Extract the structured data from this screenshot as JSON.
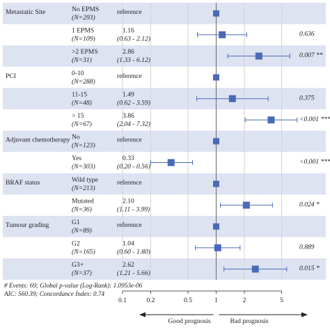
{
  "chart_data": {
    "type": "forest",
    "x_scale": "log",
    "xlim": [
      0.1,
      10
    ],
    "reference_line": 1,
    "x_ticks": [
      "0.1",
      "0.2",
      "0.5",
      "1",
      "2",
      "5"
    ],
    "x_tick_values": [
      0.1,
      0.2,
      0.5,
      1,
      2,
      5
    ],
    "direction_labels": {
      "left": "Good prognosis",
      "right": "Bad prognosis"
    },
    "footnote_lines": [
      "# Events: 69; Global p-value (Log-Rank): 1.0953e-06",
      "AIC: 560.39; Concordance Index: 0.74"
    ],
    "marker_color": "#4a6ab8",
    "band_color": "#dde3f1",
    "rows": [
      {
        "variable": "Metastatic Site",
        "level": "No EPMS",
        "n": "(N=293)",
        "est_text": "reference",
        "ci_text": "",
        "p_text": "",
        "hr": 1,
        "lo": null,
        "hi": null,
        "ref": true
      },
      {
        "variable": "",
        "level": "1 EPMS",
        "n": "(N=109)",
        "est_text": "1.16",
        "ci_text": "(0.63 - 2.12)",
        "p_text": "0.636",
        "hr": 1.16,
        "lo": 0.63,
        "hi": 2.12,
        "ref": false
      },
      {
        "variable": "",
        "level": ">2 EPMS",
        "n": "(N=31)",
        "est_text": "2.86",
        "ci_text": "(1.33 - 6.12)",
        "p_text": "0.007 **",
        "hr": 2.86,
        "lo": 1.33,
        "hi": 6.12,
        "ref": false
      },
      {
        "variable": "PCI",
        "level": "0-10",
        "n": "(N=288)",
        "est_text": "reference",
        "ci_text": "",
        "p_text": "",
        "hr": 1,
        "lo": null,
        "hi": null,
        "ref": true
      },
      {
        "variable": "",
        "level": "11-15",
        "n": "(N=48)",
        "est_text": "1.49",
        "ci_text": "(0.62 - 3.59)",
        "p_text": "0.375",
        "hr": 1.49,
        "lo": 0.62,
        "hi": 3.59,
        "ref": false
      },
      {
        "variable": "",
        "level": "> 15",
        "n": "(N=67)",
        "est_text": "3.86",
        "ci_text": "(2.04 - 7.32)",
        "p_text": "<0.001 ***",
        "hr": 3.86,
        "lo": 2.04,
        "hi": 7.32,
        "ref": false
      },
      {
        "variable": "Adjuvant chemotherapy",
        "level": "No",
        "n": "(N=123)",
        "est_text": "reference",
        "ci_text": "",
        "p_text": "",
        "hr": 1,
        "lo": null,
        "hi": null,
        "ref": true
      },
      {
        "variable": "",
        "level": "Yes",
        "n": "(N=303)",
        "est_text": "0.33",
        "ci_text": "(0.20 - 0.56)",
        "p_text": "<0.001 ***",
        "hr": 0.33,
        "lo": 0.2,
        "hi": 0.56,
        "ref": false
      },
      {
        "variable": "BRAF status",
        "level": "Wild type",
        "n": "(N=213)",
        "est_text": "reference",
        "ci_text": "",
        "p_text": "",
        "hr": 1,
        "lo": null,
        "hi": null,
        "ref": true
      },
      {
        "variable": "",
        "level": "Mutated",
        "n": "(N=36)",
        "est_text": "2.10",
        "ci_text": "(1.11 - 3.99)",
        "p_text": "0.024 *",
        "hr": 2.1,
        "lo": 1.11,
        "hi": 3.99,
        "ref": false
      },
      {
        "variable": "Tumour grading",
        "level": "G1",
        "n": "(N=89)",
        "est_text": "reference",
        "ci_text": "",
        "p_text": "",
        "hr": 1,
        "lo": null,
        "hi": null,
        "ref": true
      },
      {
        "variable": "",
        "level": "G2",
        "n": "(N=165)",
        "est_text": "1.04",
        "ci_text": "(0.60 - 1.80)",
        "p_text": "0.889",
        "hr": 1.04,
        "lo": 0.6,
        "hi": 1.8,
        "ref": false
      },
      {
        "variable": "",
        "level": "G3+",
        "n": "(N=37)",
        "est_text": "2.62",
        "ci_text": "(1.21 - 5.66)",
        "p_text": "0.015 *",
        "hr": 2.62,
        "lo": 1.21,
        "hi": 5.66,
        "ref": false
      }
    ]
  }
}
